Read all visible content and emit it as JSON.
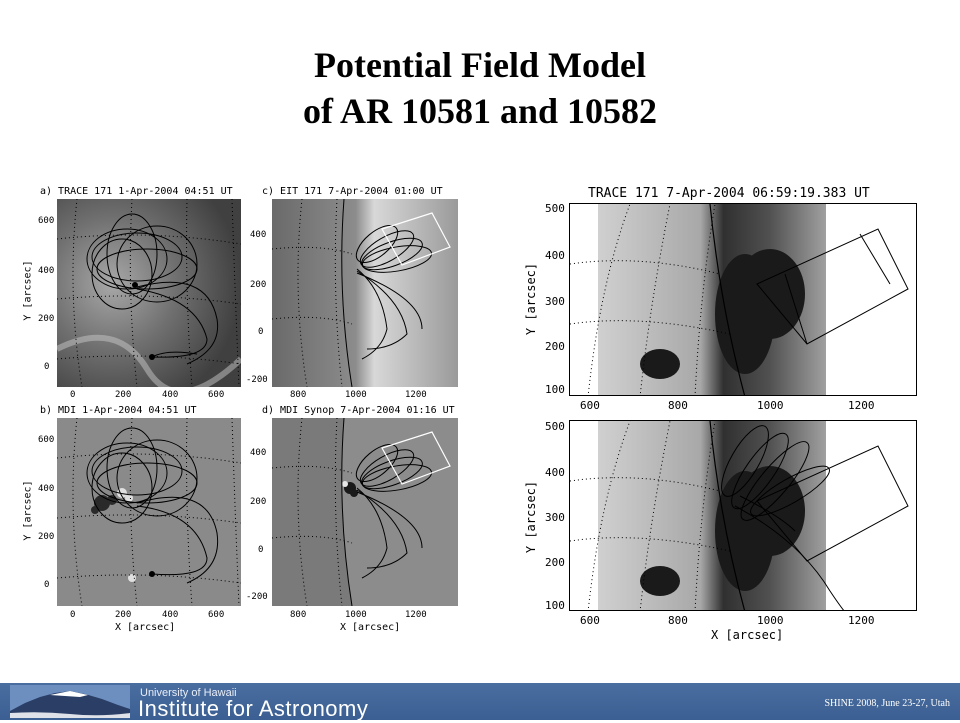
{
  "slide": {
    "title_line1": "Potential Field Model",
    "title_line2": "of AR 10581 and 10582"
  },
  "left_figure": {
    "panels": [
      {
        "label": "a) TRACE 171 1-Apr-2004 04:51 UT",
        "xlabel": "",
        "ylabel": "Y [arcsec]",
        "xticks": [
          "0",
          "200",
          "400",
          "600"
        ],
        "yticks": [
          "600",
          "400",
          "200",
          "0"
        ]
      },
      {
        "label": "c) EIT 171 7-Apr-2004 01:00 UT",
        "xlabel": "",
        "ylabel": "",
        "xticks": [
          "800",
          "1000",
          "1200"
        ],
        "yticks": [
          "400",
          "200",
          "0",
          "-200"
        ]
      },
      {
        "label": "b) MDI 1-Apr-2004 04:51 UT",
        "xlabel": "X [arcsec]",
        "ylabel": "Y [arcsec]",
        "xticks": [
          "0",
          "200",
          "400",
          "600"
        ],
        "yticks": [
          "600",
          "400",
          "200",
          "0"
        ]
      },
      {
        "label": "d) MDI Synop 7-Apr-2004 01:16 UT",
        "xlabel": "X [arcsec]",
        "ylabel": "",
        "xticks": [
          "800",
          "1000",
          "1200"
        ],
        "yticks": [
          "400",
          "200",
          "0",
          "-200"
        ]
      }
    ]
  },
  "right_figure": {
    "title": "TRACE 171   7-Apr-2004 06:59:19.383 UT",
    "ylabel": "Y [arcsec]",
    "xlabel": "X [arcsec]",
    "xticks": [
      "600",
      "800",
      "1000",
      "1200"
    ],
    "yticks": [
      "500",
      "400",
      "300",
      "200",
      "100"
    ]
  },
  "footer": {
    "university": "University of Hawaii",
    "institute": "Institute for Astronomy",
    "credit": "SHINE 2008, June 23-27, Utah"
  },
  "colors": {
    "footer_bg": "#4064a0",
    "text": "#000000"
  }
}
